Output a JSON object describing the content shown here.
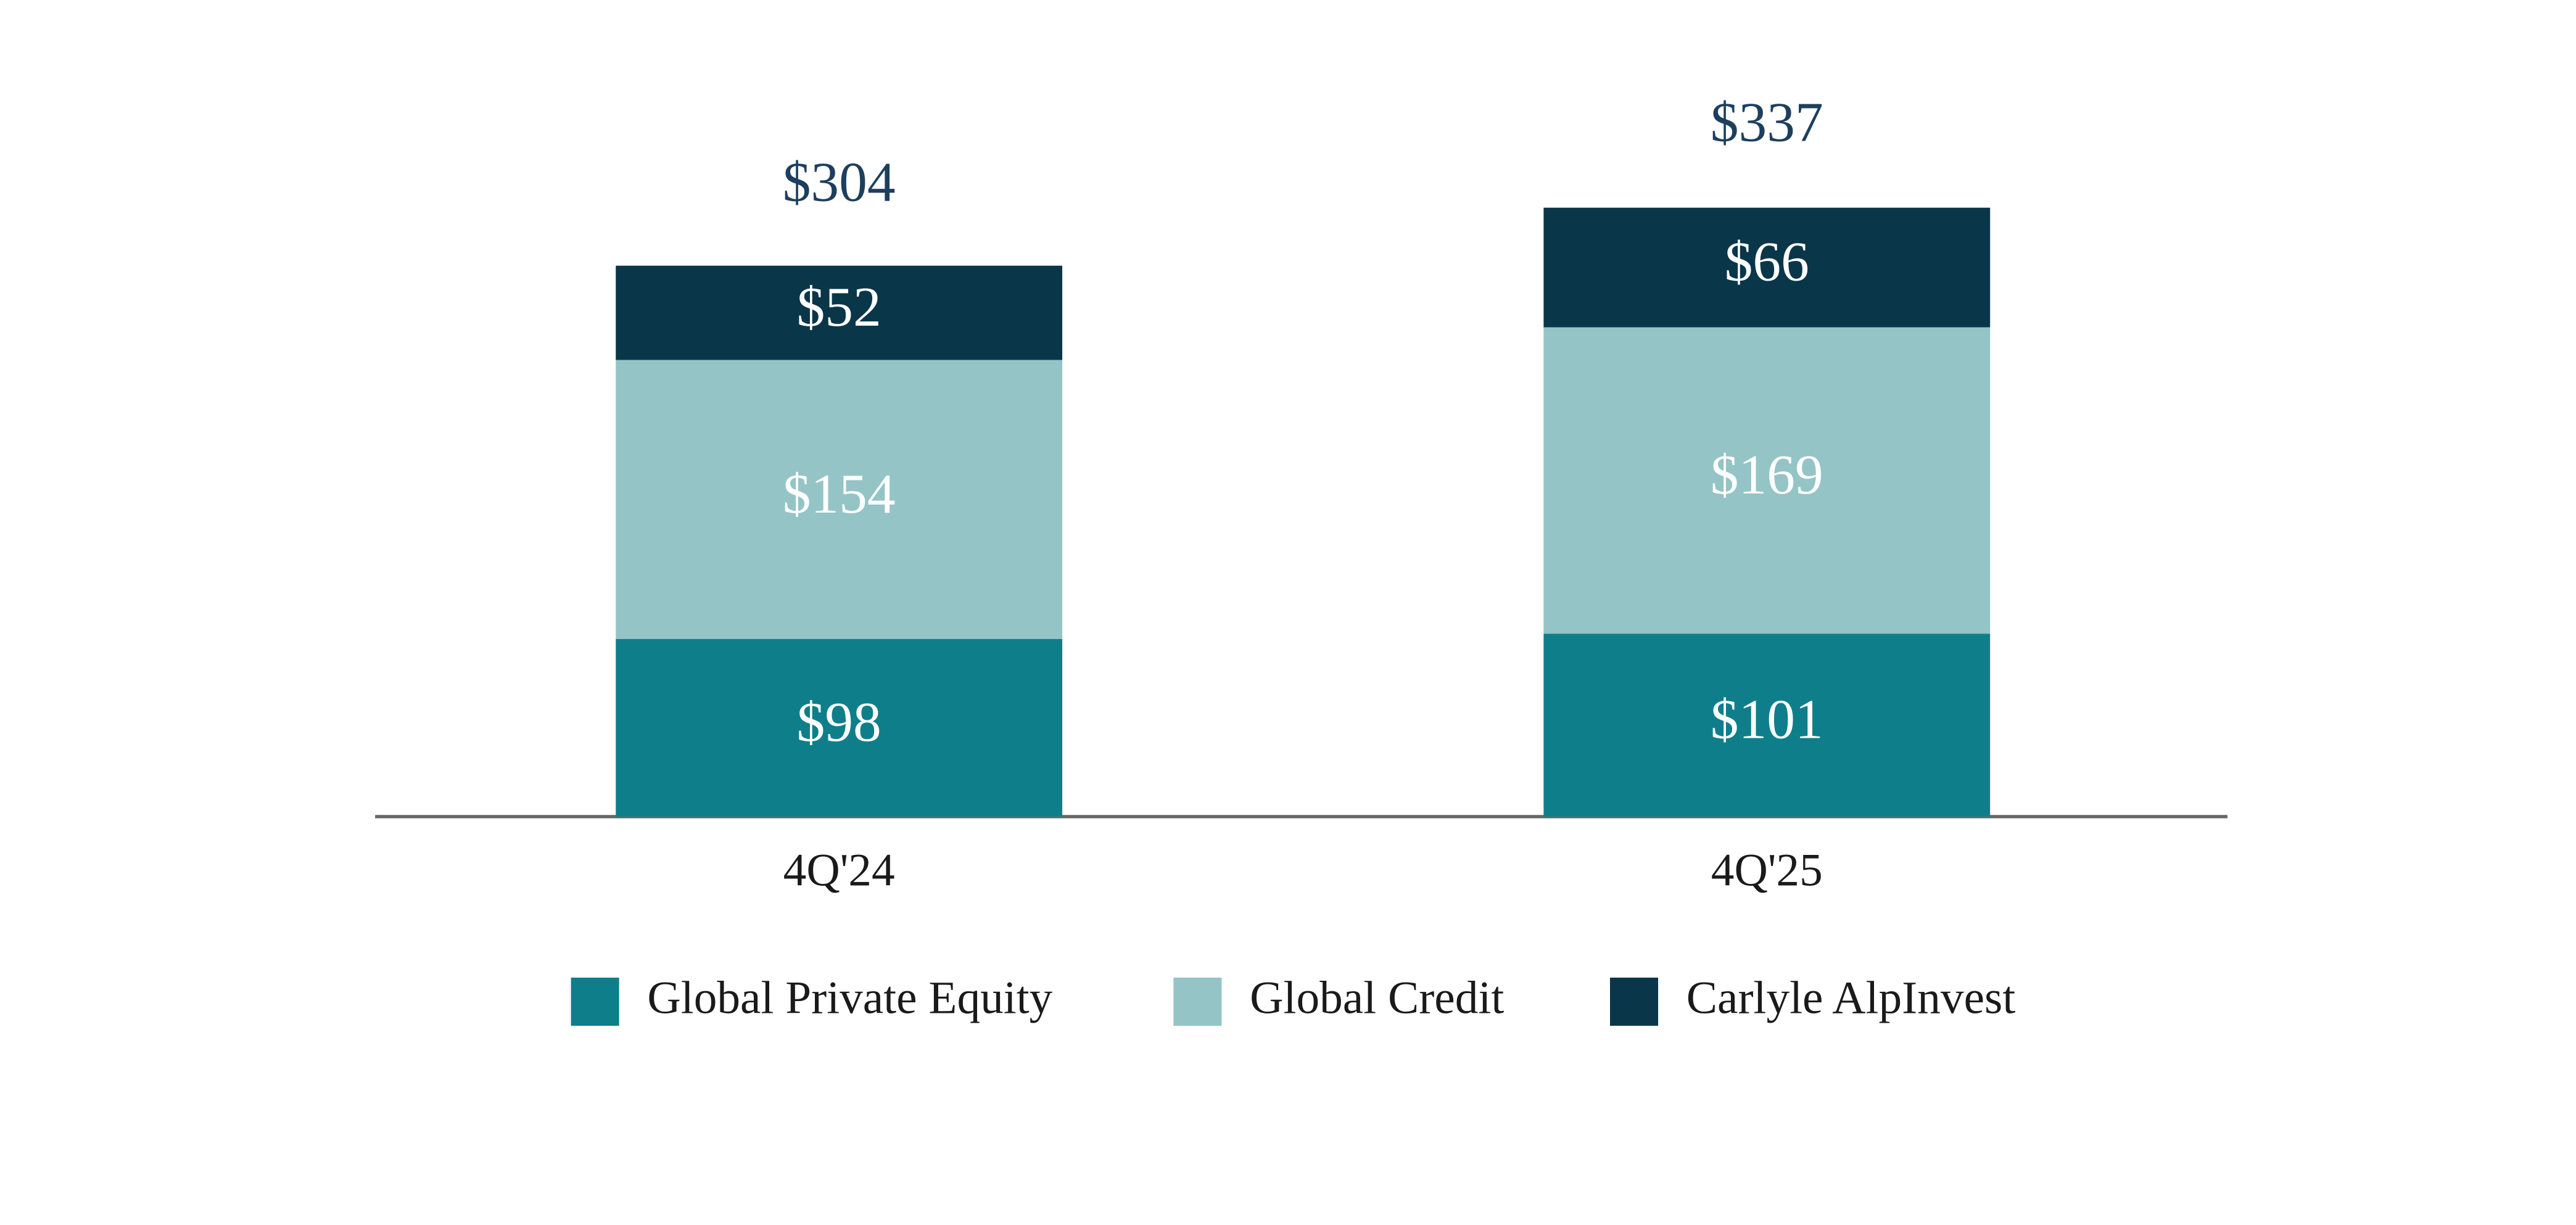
{
  "chart_data": {
    "type": "stacked-bar",
    "categories": [
      "4Q'24",
      "4Q'25"
    ],
    "series": [
      {
        "name": "Global Private Equity",
        "color": "#0e7f8a",
        "values": [
          98,
          101
        ],
        "value_labels": [
          "$98",
          "$101"
        ]
      },
      {
        "name": "Global Credit",
        "color": "#94c4c6",
        "values": [
          154,
          169
        ],
        "value_labels": [
          "$154",
          "$169"
        ]
      },
      {
        "name": "Carlyle AlpInvest",
        "color": "#0a364a",
        "values": [
          52,
          66
        ],
        "value_labels": [
          "$52",
          "$66"
        ]
      }
    ],
    "totals": [
      304,
      337
    ],
    "total_labels": [
      "$304",
      "$337"
    ],
    "legend": "bottom"
  }
}
